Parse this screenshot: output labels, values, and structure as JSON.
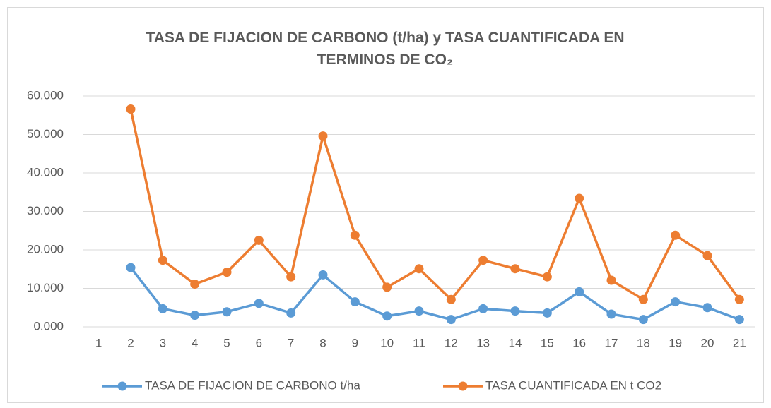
{
  "chart_data": {
    "type": "line",
    "title": "TASA DE FIJACION DE CARBONO (t/ha) y TASA CUANTIFICADA EN TERMINOS DE CO₂",
    "categories": [
      "1",
      "2",
      "3",
      "4",
      "5",
      "6",
      "7",
      "8",
      "9",
      "10",
      "11",
      "12",
      "13",
      "14",
      "15",
      "16",
      "17",
      "18",
      "19",
      "20",
      "21"
    ],
    "series": [
      {
        "name": "TASA DE FIJACION DE CARBONO t/ha",
        "color": "#5b9bd5",
        "values": [
          null,
          15.4,
          4.7,
          3.0,
          3.9,
          6.1,
          3.6,
          13.5,
          6.5,
          2.8,
          4.1,
          1.9,
          4.7,
          4.1,
          3.6,
          9.1,
          3.3,
          1.9,
          6.5,
          5.0,
          1.9
        ]
      },
      {
        "name": "TASA CUANTIFICADA EN t CO2",
        "color": "#ed7d31",
        "values": [
          null,
          56.6,
          17.3,
          11.1,
          14.2,
          22.5,
          13.0,
          49.6,
          23.8,
          10.3,
          15.1,
          7.1,
          17.3,
          15.1,
          13.0,
          33.4,
          12.1,
          7.1,
          23.8,
          18.5,
          7.1
        ]
      }
    ],
    "ylim": [
      0,
      60
    ],
    "yticks": [
      {
        "value": 0,
        "label": "0.000"
      },
      {
        "value": 10,
        "label": "10.000"
      },
      {
        "value": 20,
        "label": "20.000"
      },
      {
        "value": 30,
        "label": "30.000"
      },
      {
        "value": 40,
        "label": "40.000"
      },
      {
        "value": 50,
        "label": "50.000"
      },
      {
        "value": 60,
        "label": "60.000"
      }
    ],
    "grid": true,
    "legend": "bottom"
  }
}
